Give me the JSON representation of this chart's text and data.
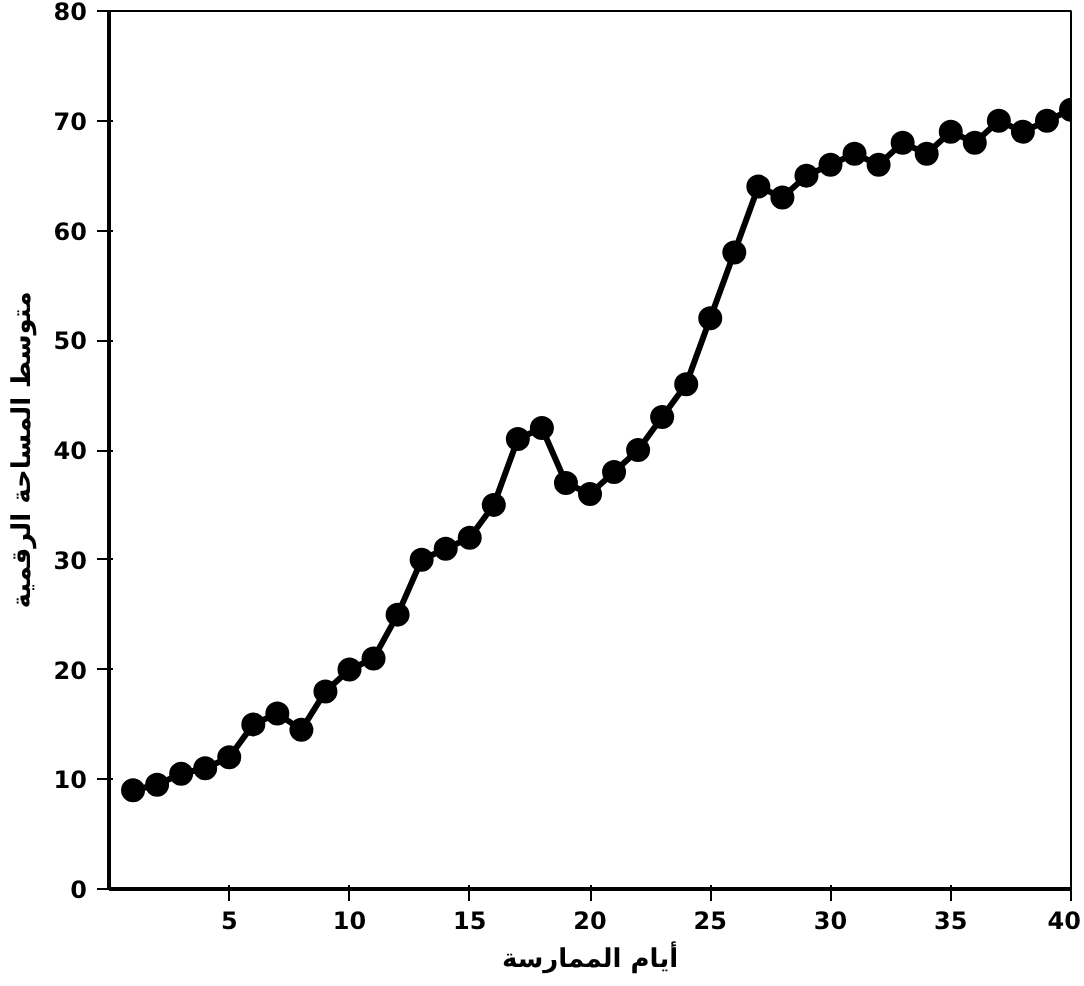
{
  "chart_data": {
    "type": "line",
    "xlabel": "أيام الممارسة",
    "ylabel": "متوسط المساحة الرقمية",
    "x": [
      1,
      2,
      3,
      4,
      5,
      6,
      7,
      8,
      9,
      10,
      11,
      12,
      13,
      14,
      15,
      16,
      17,
      18,
      19,
      20,
      21,
      22,
      23,
      24,
      25,
      26,
      27,
      28,
      29,
      30,
      31,
      32,
      33,
      34,
      35,
      36,
      37,
      38,
      39,
      40
    ],
    "series": [
      {
        "color": "#000000",
        "values": [
          9,
          9.5,
          10.5,
          11,
          12,
          15,
          16,
          14.5,
          18,
          20,
          21,
          25,
          30,
          31,
          32,
          35,
          41,
          42,
          37,
          36,
          38,
          40,
          43,
          46,
          52,
          58,
          64,
          63,
          65,
          66,
          67,
          66,
          68,
          67,
          69,
          68,
          70,
          69,
          70,
          71
        ]
      }
    ],
    "xlim": [
      0,
      40
    ],
    "ylim": [
      0,
      80
    ],
    "xticks": [
      5,
      10,
      15,
      20,
      25,
      30,
      35,
      40
    ],
    "yticks": [
      0,
      10,
      20,
      30,
      40,
      50,
      60,
      70,
      80
    ],
    "marker": "circle",
    "line_style": "solid"
  }
}
